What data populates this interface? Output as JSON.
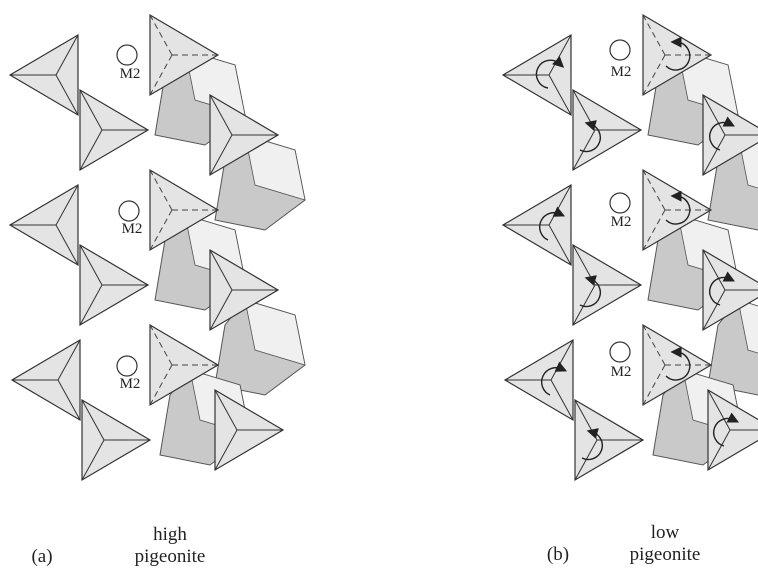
{
  "panels": [
    {
      "label": "(a)",
      "caption": [
        "high",
        "pigeonite"
      ],
      "sites": [
        "M2",
        "M2",
        "M2"
      ]
    },
    {
      "label": "(b)",
      "caption": [
        "low",
        "pigeonite"
      ],
      "sites": [
        "M2",
        "M2",
        "M2"
      ]
    }
  ]
}
